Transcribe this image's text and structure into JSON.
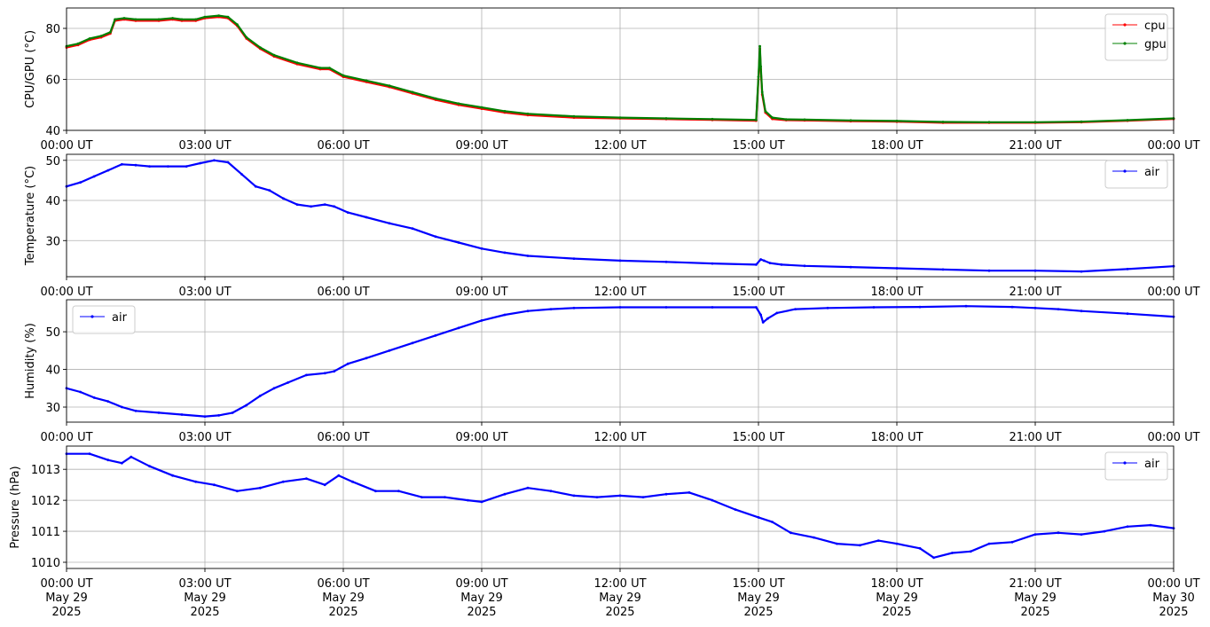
{
  "chart_data": [
    {
      "type": "line",
      "ylabel": "CPU/GPU (°C)",
      "xlim": [
        "00:00 UT",
        "00:00 UT (+1 day)"
      ],
      "ylim": [
        40,
        88
      ],
      "yticks": [
        40,
        60,
        80
      ],
      "xticklabels": [
        "00:00 UT",
        "03:00 UT",
        "06:00 UT",
        "09:00 UT",
        "12:00 UT",
        "15:00 UT",
        "18:00 UT",
        "21:00 UT",
        "00:00 UT"
      ],
      "grid": true,
      "legend_position": "upper-right",
      "series": [
        {
          "name": "cpu",
          "color": "#ff0000",
          "hours": [
            0,
            0.25,
            0.5,
            0.75,
            0.95,
            1.05,
            1.25,
            1.5,
            2.0,
            2.3,
            2.5,
            2.8,
            3.0,
            3.3,
            3.5,
            3.7,
            3.9,
            4.2,
            4.5,
            5.0,
            5.5,
            5.7,
            6.0,
            6.5,
            7.0,
            7.5,
            8.0,
            8.5,
            9.0,
            9.5,
            10.0,
            11.0,
            12.0,
            13.0,
            14.0,
            14.95,
            15.0,
            15.03,
            15.05,
            15.08,
            15.15,
            15.3,
            15.6,
            16.0,
            17.0,
            18.0,
            19.0,
            20.0,
            21.0,
            22.0,
            23.0,
            24.0
          ],
          "values": [
            72.5,
            73.5,
            75.5,
            76.5,
            78,
            83,
            83.5,
            83,
            83,
            83.5,
            83,
            83,
            84,
            84.5,
            84,
            81,
            76,
            72,
            69,
            66,
            64,
            64,
            61,
            59,
            57,
            54.5,
            52,
            50,
            48.5,
            47,
            46,
            45,
            44.7,
            44.4,
            44.1,
            43.8,
            60,
            72,
            64,
            54,
            47,
            44.5,
            44,
            43.9,
            43.6,
            43.4,
            43,
            43,
            43,
            43.2,
            43.8,
            44.5
          ]
        },
        {
          "name": "gpu",
          "color": "#008000",
          "hours": [
            0,
            0.25,
            0.5,
            0.75,
            0.95,
            1.05,
            1.25,
            1.5,
            2.0,
            2.3,
            2.5,
            2.8,
            3.0,
            3.3,
            3.5,
            3.7,
            3.9,
            4.2,
            4.5,
            5.0,
            5.5,
            5.7,
            6.0,
            6.5,
            7.0,
            7.5,
            8.0,
            8.5,
            9.0,
            9.5,
            10.0,
            11.0,
            12.0,
            13.0,
            14.0,
            14.95,
            15.0,
            15.03,
            15.05,
            15.08,
            15.15,
            15.3,
            15.6,
            16.0,
            17.0,
            18.0,
            19.0,
            20.0,
            21.0,
            22.0,
            23.0,
            24.0
          ],
          "values": [
            73,
            74,
            76,
            77,
            78.5,
            83.5,
            84,
            83.5,
            83.5,
            84,
            83.5,
            83.5,
            84.5,
            85,
            84.5,
            81.5,
            76.5,
            72.5,
            69.5,
            66.5,
            64.5,
            64.5,
            61.5,
            59.5,
            57.5,
            55,
            52.5,
            50.5,
            49,
            47.5,
            46.5,
            45.5,
            45,
            44.7,
            44.4,
            44.1,
            61,
            73,
            65,
            55,
            47.5,
            45,
            44.3,
            44.2,
            43.9,
            43.7,
            43.3,
            43.2,
            43.2,
            43.4,
            44,
            44.7
          ]
        }
      ]
    },
    {
      "type": "line",
      "ylabel": "Temperature (°C)",
      "ylim": [
        21,
        51.5
      ],
      "yticks": [
        30,
        40,
        50
      ],
      "xticklabels": [
        "00:00 UT",
        "03:00 UT",
        "06:00 UT",
        "09:00 UT",
        "12:00 UT",
        "15:00 UT",
        "18:00 UT",
        "21:00 UT",
        "00:00 UT"
      ],
      "grid": true,
      "legend_position": "upper-right",
      "series": [
        {
          "name": "air",
          "color": "#0000ff",
          "hours": [
            0,
            0.3,
            0.6,
            0.9,
            1.2,
            1.5,
            1.8,
            2.2,
            2.6,
            2.9,
            3.2,
            3.5,
            3.8,
            4.1,
            4.4,
            4.7,
            5.0,
            5.3,
            5.6,
            5.8,
            6.1,
            6.5,
            7.0,
            7.5,
            8.0,
            8.5,
            9.0,
            9.5,
            10.0,
            11.0,
            12.0,
            13.0,
            14.0,
            14.95,
            15.05,
            15.12,
            15.25,
            15.5,
            16.0,
            17.0,
            18.0,
            19.0,
            20.0,
            21.0,
            22.0,
            23.0,
            24.0
          ],
          "values": [
            43.5,
            44.5,
            46,
            47.5,
            49,
            48.8,
            48.5,
            48.5,
            48.5,
            49.3,
            50,
            49.5,
            46.5,
            43.5,
            42.5,
            40.5,
            39,
            38.5,
            39,
            38.5,
            37,
            35.8,
            34.3,
            33,
            31,
            29.5,
            28,
            27,
            26.2,
            25.5,
            25,
            24.7,
            24.3,
            24,
            25.3,
            25,
            24.4,
            24,
            23.7,
            23.4,
            23.1,
            22.8,
            22.5,
            22.5,
            22.3,
            22.9,
            23.6
          ]
        }
      ]
    },
    {
      "type": "line",
      "ylabel": "Humidity (%)",
      "ylim": [
        26,
        58.5
      ],
      "yticks": [
        30,
        40,
        50
      ],
      "xticklabels": [
        "00:00 UT",
        "03:00 UT",
        "06:00 UT",
        "09:00 UT",
        "12:00 UT",
        "15:00 UT",
        "18:00 UT",
        "21:00 UT",
        "00:00 UT"
      ],
      "grid": true,
      "legend_position": "upper-left",
      "series": [
        {
          "name": "air",
          "color": "#0000ff",
          "hours": [
            0,
            0.3,
            0.6,
            0.9,
            1.2,
            1.5,
            2.0,
            2.5,
            3.0,
            3.3,
            3.6,
            3.9,
            4.2,
            4.5,
            4.8,
            5.2,
            5.6,
            5.8,
            6.1,
            6.5,
            7.0,
            7.5,
            8.0,
            8.5,
            9.0,
            9.5,
            10.0,
            10.5,
            11.0,
            12.0,
            13.0,
            14.0,
            14.95,
            15.05,
            15.1,
            15.2,
            15.4,
            15.8,
            16.5,
            17.5,
            18.5,
            19.5,
            20.5,
            21.0,
            21.5,
            22.0,
            23.0,
            24.0
          ],
          "values": [
            35,
            34,
            32.5,
            31.5,
            30,
            29,
            28.5,
            28,
            27.5,
            27.8,
            28.5,
            30.5,
            33,
            35,
            36.5,
            38.5,
            39,
            39.5,
            41.5,
            43,
            45,
            47,
            49,
            51,
            53,
            54.5,
            55.5,
            56,
            56.3,
            56.5,
            56.5,
            56.5,
            56.5,
            54.5,
            52.5,
            53.5,
            55,
            56,
            56.3,
            56.5,
            56.6,
            56.8,
            56.6,
            56.3,
            56,
            55.5,
            54.8,
            54
          ]
        }
      ]
    },
    {
      "type": "line",
      "ylabel": "Pressure (hPa)",
      "ylim": [
        1009.8,
        1013.75
      ],
      "yticks": [
        1010,
        1011,
        1012,
        1013
      ],
      "xticklabels": [
        [
          "00:00 UT",
          "May 29",
          "2025"
        ],
        [
          "03:00 UT",
          "May 29",
          "2025"
        ],
        [
          "06:00 UT",
          "May 29",
          "2025"
        ],
        [
          "09:00 UT",
          "May 29",
          "2025"
        ],
        [
          "12:00 UT",
          "May 29",
          "2025"
        ],
        [
          "15:00 UT",
          "May 29",
          "2025"
        ],
        [
          "18:00 UT",
          "May 29",
          "2025"
        ],
        [
          "21:00 UT",
          "May 29",
          "2025"
        ],
        [
          "00:00 UT",
          "May 30",
          "2025"
        ]
      ],
      "grid": true,
      "legend_position": "upper-right",
      "series": [
        {
          "name": "air",
          "color": "#0000ff",
          "hours": [
            0,
            0.5,
            0.9,
            1.2,
            1.4,
            1.8,
            2.3,
            2.8,
            3.2,
            3.7,
            4.2,
            4.7,
            5.2,
            5.6,
            5.9,
            6.2,
            6.7,
            7.2,
            7.7,
            8.2,
            8.7,
            9.0,
            9.5,
            10.0,
            10.5,
            11.0,
            11.5,
            12.0,
            12.5,
            13.0,
            13.5,
            14.0,
            14.5,
            15.0,
            15.3,
            15.7,
            16.2,
            16.7,
            17.2,
            17.6,
            18.0,
            18.5,
            18.8,
            19.2,
            19.6,
            20.0,
            20.5,
            21.0,
            21.5,
            22.0,
            22.5,
            23.0,
            23.5,
            24.0
          ],
          "values": [
            1013.5,
            1013.5,
            1013.3,
            1013.2,
            1013.4,
            1013.1,
            1012.8,
            1012.6,
            1012.5,
            1012.3,
            1012.4,
            1012.6,
            1012.7,
            1012.5,
            1012.8,
            1012.6,
            1012.3,
            1012.3,
            1012.1,
            1012.1,
            1012.0,
            1011.95,
            1012.2,
            1012.4,
            1012.3,
            1012.15,
            1012.1,
            1012.15,
            1012.1,
            1012.2,
            1012.25,
            1012.0,
            1011.7,
            1011.45,
            1011.3,
            1010.95,
            1010.8,
            1010.6,
            1010.55,
            1010.7,
            1010.6,
            1010.45,
            1010.15,
            1010.3,
            1010.35,
            1010.6,
            1010.65,
            1010.9,
            1010.95,
            1010.9,
            1011.0,
            1011.15,
            1011.2,
            1011.1
          ]
        }
      ]
    }
  ]
}
